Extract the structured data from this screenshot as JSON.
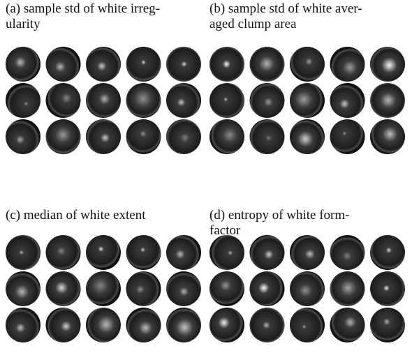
{
  "panels": [
    {
      "caption": [
        "(a) sample std of white irreg-",
        "ularity"
      ]
    },
    {
      "caption": [
        "(b) sample std of white aver-",
        "aged clump area"
      ]
    },
    {
      "caption": [
        "(c) median of white extent"
      ]
    },
    {
      "caption": [
        "(d) entropy of white form-",
        "factor"
      ]
    }
  ]
}
